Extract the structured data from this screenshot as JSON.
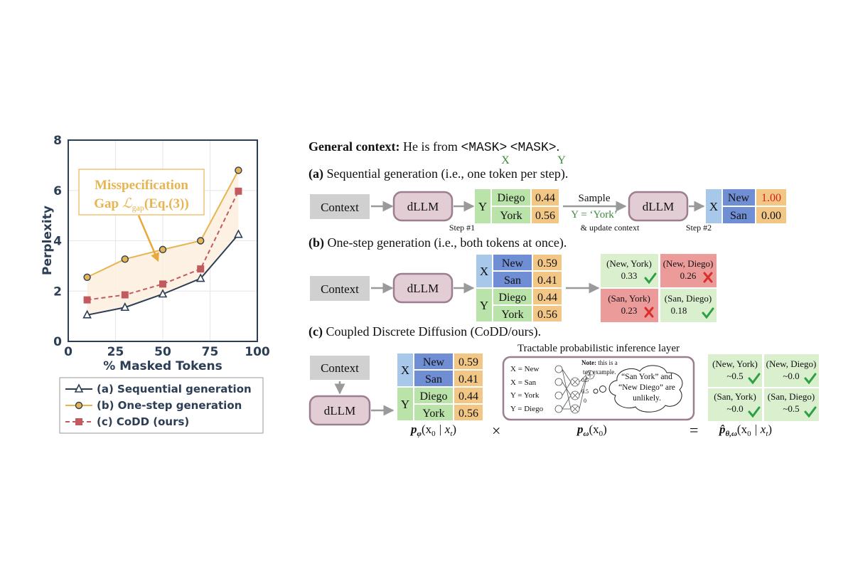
{
  "colors": {
    "dark": "#2c3e55",
    "orange": "#e8b451",
    "orange_fill": "#fbeedd",
    "red": "#c25b60",
    "ctx_gray": "#d0d0d0",
    "dllm_fill": "#e2cdd4",
    "dllm_stroke": "#9b7e8f",
    "x_blue": "#a7c8e9",
    "new_blue": "#6f8ed3",
    "green": "#b9e3a8",
    "pale_green": "#d9efce",
    "num_orange": "#f2c785",
    "pale_red": "#ec9b9b",
    "check_green": "#2ea043",
    "cross_red": "#d9302b",
    "y_green_text": "#3b8a3b",
    "red_text": "#d22020"
  },
  "chart_data": {
    "type": "line",
    "xlabel": "% Masked Tokens",
    "ylabel": "Perplexity",
    "xlim": [
      0,
      100
    ],
    "ylim": [
      0,
      8
    ],
    "x_ticks": [
      "0",
      "25",
      "50",
      "75",
      "100"
    ],
    "y_ticks": [
      "0",
      "2",
      "4",
      "6",
      "8"
    ],
    "grid": true,
    "x": [
      10,
      30,
      50,
      70,
      90
    ],
    "series": [
      {
        "name": "(a) Sequential generation",
        "marker": "triangle",
        "values": [
          1.05,
          1.35,
          1.88,
          2.5,
          4.25
        ]
      },
      {
        "name": "(b) One-step generation",
        "marker": "circle",
        "values": [
          2.55,
          3.27,
          3.65,
          4.0,
          6.8
        ]
      },
      {
        "name": "(c) CoDD (ours)",
        "marker": "square",
        "values": [
          1.65,
          1.85,
          2.28,
          2.88,
          5.97
        ]
      }
    ],
    "annotation": {
      "line1": "Misspecification",
      "line2_prefix": "Gap ",
      "line2_formula": "ℒ",
      "line2_sub": "gap",
      "line2_eq": "(Eq.(3))"
    },
    "legend_position": "bottom"
  },
  "diagram": {
    "general": {
      "bold": "General context:",
      "text": " He is from ",
      "mask1": "<MASK>",
      "mask2": "<MASK>",
      "end": ".",
      "x_label": "X",
      "y_label": "Y"
    },
    "a": {
      "title_bold": "(a)",
      "title": " Sequential generation (i.e., one token per step).",
      "context": "Context",
      "dllm": "dLLM",
      "var_y": "Y",
      "tokens": [
        {
          "word": "Diego",
          "prob": "0.44"
        },
        {
          "word": "York",
          "prob": "0.56"
        }
      ],
      "step1": "Step #1",
      "sample": "Sample",
      "sample_eq": "Y = ‘York’",
      "update": "& update context",
      "dllm2": "dLLM",
      "step2": "Step #2",
      "var_x": "X",
      "tokens2": [
        {
          "word": "New",
          "prob": "1.00"
        },
        {
          "word": "San",
          "prob": "0.00"
        }
      ]
    },
    "b": {
      "title_bold": "(b)",
      "title": " One-step generation (i.e., both tokens at once).",
      "context": "Context",
      "dllm": "dLLM",
      "var_x": "X",
      "var_y": "Y",
      "x_tokens": [
        {
          "word": "New",
          "prob": "0.59"
        },
        {
          "word": "San",
          "prob": "0.41"
        }
      ],
      "y_tokens": [
        {
          "word": "Diego",
          "prob": "0.44"
        },
        {
          "word": "York",
          "prob": "0.56"
        }
      ],
      "joint": [
        {
          "pair": "(New, York)",
          "prob": "0.33",
          "ok": true
        },
        {
          "pair": "(New, Diego)",
          "prob": "0.26",
          "ok": false
        },
        {
          "pair": "(San, York)",
          "prob": "0.23",
          "ok": false
        },
        {
          "pair": "(San, Diego)",
          "prob": "0.18",
          "ok": true
        }
      ]
    },
    "c": {
      "title_bold": "(c)",
      "title": " Coupled Discrete Diffusion (CoDD/ours).",
      "context": "Context",
      "dllm": "dLLM",
      "var_x": "X",
      "var_y": "Y",
      "x_tokens": [
        {
          "word": "New",
          "prob": "0.59"
        },
        {
          "word": "San",
          "prob": "0.41"
        }
      ],
      "y_tokens": [
        {
          "word": "Diego",
          "prob": "0.44"
        },
        {
          "word": "York",
          "prob": "0.56"
        }
      ],
      "layer_title": "Tractable probabilistic inference layer",
      "layer_inputs": [
        "X = New",
        "X = San",
        "Y = York",
        "Y = Diego"
      ],
      "note_bold": "Note:",
      "note_text1": " this is a",
      "note_text2": "toy example.",
      "weights": [
        "0.5",
        "0.5",
        "0"
      ],
      "bubble": [
        "“San York” and",
        "“New Diego” are",
        "unlikely."
      ],
      "joint": [
        {
          "pair": "(New, York)",
          "prob": "~0.5",
          "ok": true
        },
        {
          "pair": "(New, Diego)",
          "prob": "~0.0",
          "ok": true
        },
        {
          "pair": "(San, York)",
          "prob": "~0.0",
          "ok": true
        },
        {
          "pair": "(San, Diego)",
          "prob": "~0.5",
          "ok": true
        }
      ],
      "eq_p_phi": "p",
      "eq_p_phi_sub": "φ",
      "eq_p_phi_args": "(x",
      "eq_p_phi_given": " | x",
      "times": "×",
      "eq_p_omega": "p",
      "eq_p_omega_sub": "ω",
      "eq_p_omega_args": "(x",
      "equals": "=",
      "eq_phat": "p̂",
      "eq_phat_sub": "θ,ω",
      "eq_phat_args": "(x",
      "eq_phat_given": " | x",
      "sub_0": "0",
      "sub_t": "t"
    }
  }
}
